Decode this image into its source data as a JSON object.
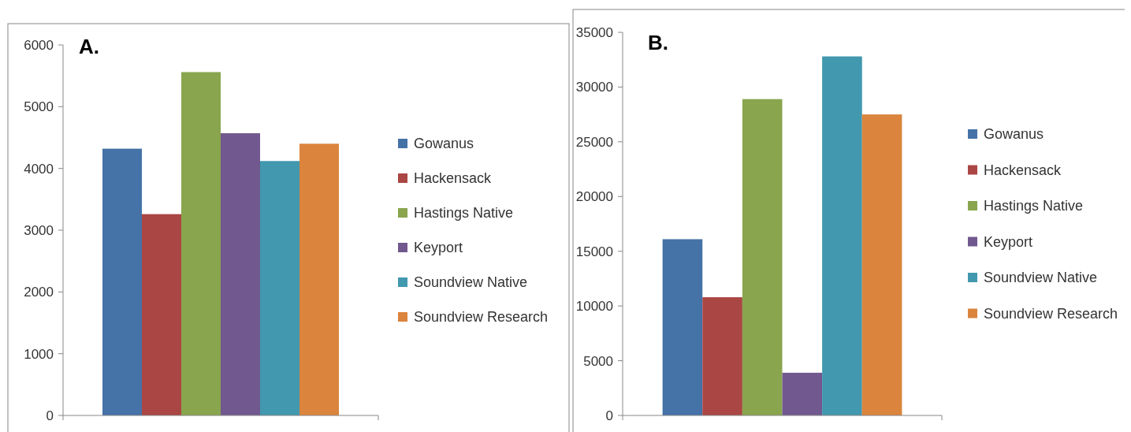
{
  "chart_data": [
    {
      "type": "bar",
      "title": "A.",
      "categories": [
        null
      ],
      "series": [
        {
          "name": "Gowanus",
          "color": "#4572a7",
          "values": [
            4320
          ]
        },
        {
          "name": "Hackensack",
          "color": "#aa4643",
          "values": [
            3260
          ]
        },
        {
          "name": "Hastings Native",
          "color": "#89a54e",
          "values": [
            5560
          ]
        },
        {
          "name": "Keyport",
          "color": "#71588f",
          "values": [
            4570
          ]
        },
        {
          "name": "Soundview Native",
          "color": "#4198af",
          "values": [
            4120
          ]
        },
        {
          "name": "Soundview Research",
          "color": "#db843d",
          "values": [
            4400
          ]
        }
      ],
      "ylim": [
        0,
        6000
      ],
      "yticks": [
        0,
        1000,
        2000,
        3000,
        4000,
        5000,
        6000
      ],
      "legend": "right"
    },
    {
      "type": "bar",
      "title": "B.",
      "categories": [
        null
      ],
      "series": [
        {
          "name": "Gowanus",
          "color": "#4572a7",
          "values": [
            16100
          ]
        },
        {
          "name": "Hackensack",
          "color": "#aa4643",
          "values": [
            10800
          ]
        },
        {
          "name": "Hastings Native",
          "color": "#89a54e",
          "values": [
            28900
          ]
        },
        {
          "name": "Keyport",
          "color": "#71588f",
          "values": [
            3900
          ]
        },
        {
          "name": "Soundview Native",
          "color": "#4198af",
          "values": [
            32800
          ]
        },
        {
          "name": "Soundview Research",
          "color": "#db843d",
          "values": [
            27500
          ]
        }
      ],
      "ylim": [
        0,
        35000
      ],
      "yticks": [
        0,
        5000,
        10000,
        15000,
        20000,
        25000,
        30000,
        35000
      ],
      "legend": "right"
    }
  ]
}
